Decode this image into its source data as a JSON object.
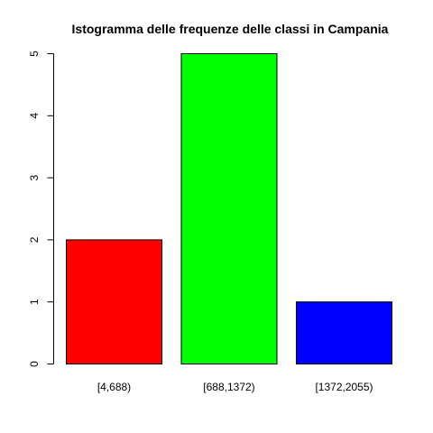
{
  "chart_data": {
    "type": "bar",
    "title": "Istogramma delle frequenze delle classi in Campania",
    "xlabel": "",
    "ylabel": "",
    "categories": [
      "[4,688)",
      "[688,1372)",
      "[1372,2055)"
    ],
    "values": [
      2,
      5,
      1
    ],
    "colors": [
      "#ff0000",
      "#00ff00",
      "#0000ff"
    ],
    "ylim": [
      0,
      5
    ],
    "yticks": [
      "0",
      "1",
      "2",
      "3",
      "4",
      "5"
    ],
    "grid": false,
    "legend": "none"
  }
}
